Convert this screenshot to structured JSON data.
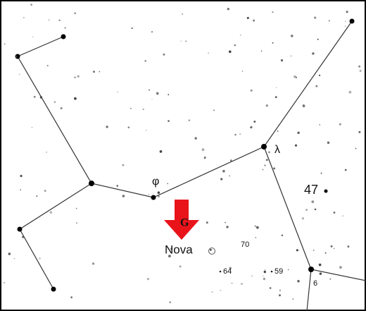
{
  "labels": {
    "phi": "φ",
    "lambda": "λ",
    "star_47": "47",
    "marker": "G",
    "nova": "Nova",
    "mag_70": "70",
    "mag_64": "64",
    "mag_59": "59",
    "star_6": "6"
  }
}
